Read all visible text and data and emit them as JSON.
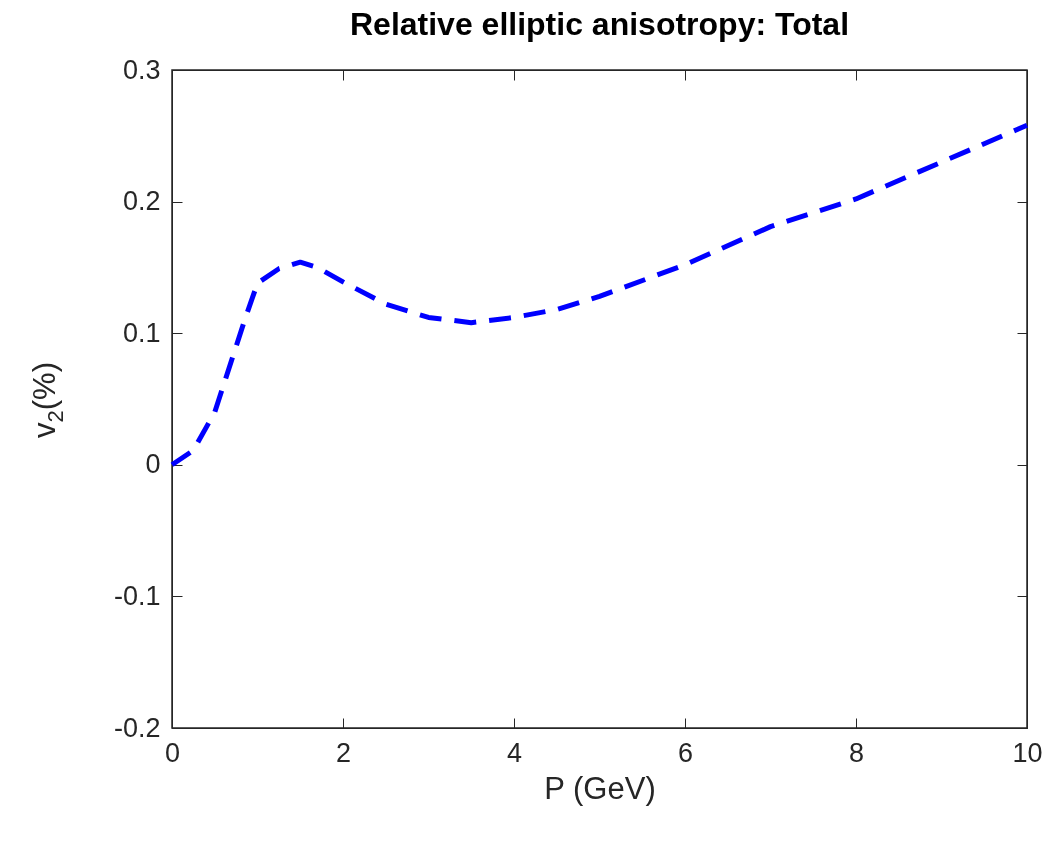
{
  "chart_data": {
    "type": "line",
    "title": "Relative elliptic anisotropy: Total",
    "xlabel": "P (GeV)",
    "ylabel": "v$_{2}$(%)",
    "series": [
      {
        "color": "#0000ff",
        "line_style": "dashed",
        "x": [
          0,
          0.25,
          0.5,
          0.7,
          0.85,
          1,
          1.25,
          1.5,
          1.7,
          2,
          2.5,
          3,
          3.5,
          4,
          4.5,
          5,
          6,
          7,
          8,
          9,
          10
        ],
        "values": [
          0,
          0.011,
          0.04,
          0.08,
          0.11,
          0.138,
          0.149,
          0.154,
          0.15,
          0.139,
          0.122,
          0.112,
          0.108,
          0.112,
          0.118,
          0.128,
          0.152,
          0.181,
          0.202,
          0.23,
          0.258
        ]
      }
    ],
    "xlim": [
      0,
      10
    ],
    "xticks": [
      0,
      2,
      4,
      6,
      8,
      10
    ],
    "ylim": [
      -0.2,
      0.3
    ],
    "yticks": [
      -0.2,
      -0.1,
      0,
      0.1,
      0.2,
      0.3
    ],
    "grid": false
  }
}
